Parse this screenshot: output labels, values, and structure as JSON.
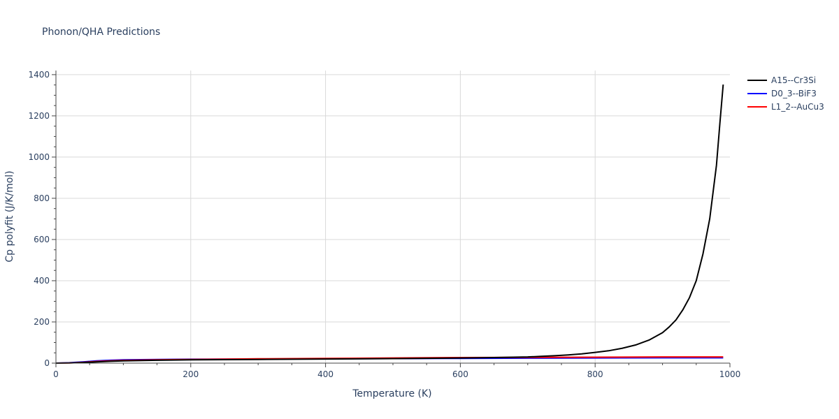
{
  "chart_data": {
    "type": "line",
    "title": "Phonon/QHA Predictions",
    "xlabel": "Temperature (K)",
    "ylabel": "Cp polyfit (J/K/mol)",
    "xlim": [
      0,
      1000
    ],
    "ylim": [
      0,
      1420
    ],
    "x_ticks": [
      0,
      200,
      400,
      600,
      800,
      1000
    ],
    "x_tick_labels": [
      "0",
      "200",
      "400",
      "600",
      "800",
      "1000"
    ],
    "y_ticks": [
      0,
      200,
      400,
      600,
      800,
      1000,
      1200,
      1400
    ],
    "y_tick_labels": [
      "0",
      "200",
      "400",
      "600",
      "800",
      "1000",
      "1200",
      "1400"
    ],
    "grid": true,
    "legend_position": "top-right",
    "series": [
      {
        "name": "A15--Cr3Si",
        "color": "#000000",
        "x": [
          0,
          20,
          40,
          60,
          80,
          100,
          150,
          200,
          300,
          400,
          500,
          600,
          650,
          700,
          720,
          740,
          760,
          780,
          800,
          820,
          840,
          860,
          880,
          900,
          910,
          920,
          930,
          940,
          950,
          960,
          970,
          980,
          985,
          990
        ],
        "y": [
          0,
          1,
          3,
          6,
          9,
          11,
          14,
          16,
          18,
          20,
          22,
          25,
          27,
          30,
          33,
          36,
          40,
          45,
          52,
          60,
          72,
          88,
          112,
          148,
          176,
          210,
          258,
          318,
          400,
          530,
          700,
          960,
          1160,
          1352
        ]
      },
      {
        "name": "D0_3--BiF3",
        "color": "#0000ff",
        "x": [
          0,
          20,
          40,
          60,
          80,
          100,
          150,
          200,
          300,
          400,
          500,
          600,
          700,
          800,
          900,
          990
        ],
        "y": [
          0,
          2,
          6,
          11,
          14,
          16,
          18,
          19,
          20,
          21,
          22,
          23,
          24,
          25,
          26,
          26
        ]
      },
      {
        "name": "L1_2--AuCu3",
        "color": "#ff0000",
        "x": [
          0,
          20,
          40,
          60,
          80,
          100,
          150,
          200,
          300,
          400,
          500,
          600,
          700,
          800,
          900,
          990
        ],
        "y": [
          0,
          1,
          4,
          8,
          11,
          13,
          16,
          18,
          21,
          23,
          25,
          27,
          28,
          29,
          30,
          30
        ]
      }
    ]
  }
}
